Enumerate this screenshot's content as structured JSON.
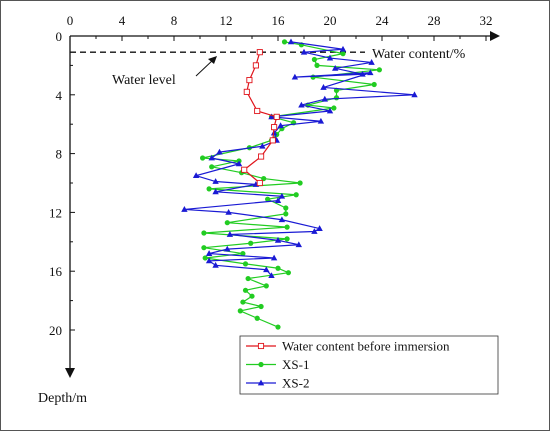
{
  "chart_data": {
    "type": "line",
    "title": "",
    "xlabel": "Water content/%",
    "ylabel": "Depth/m",
    "xlim": [
      0,
      32
    ],
    "ylim": [
      0,
      23
    ],
    "x_ticks": [
      "0",
      "4",
      "8",
      "12",
      "16",
      "20",
      "24",
      "28",
      "32"
    ],
    "y_ticks": [
      "0",
      "4",
      "8",
      "12",
      "16",
      "20"
    ],
    "annotation": "Water level",
    "water_level_depth": 1.1,
    "legend_position": "bottom-right",
    "series": [
      {
        "name": "Water content before immersion",
        "color": "#e0141b",
        "marker": "open-square",
        "points": [
          [
            14.6,
            1.1
          ],
          [
            14.3,
            2.0
          ],
          [
            13.8,
            3.0
          ],
          [
            13.6,
            3.8
          ],
          [
            14.4,
            5.1
          ],
          [
            15.9,
            5.5
          ],
          [
            15.7,
            6.2
          ],
          [
            15.6,
            7.1
          ],
          [
            14.7,
            8.2
          ],
          [
            13.4,
            9.1
          ],
          [
            14.6,
            10.0
          ]
        ]
      },
      {
        "name": "XS-1",
        "color": "#22cc22",
        "marker": "circle",
        "points": [
          [
            16.5,
            0.4
          ],
          [
            17.8,
            0.6
          ],
          [
            21.0,
            1.2
          ],
          [
            18.8,
            1.6
          ],
          [
            19.0,
            2.0
          ],
          [
            23.8,
            2.3
          ],
          [
            18.7,
            2.8
          ],
          [
            23.4,
            3.3
          ],
          [
            20.5,
            3.7
          ],
          [
            20.5,
            4.2
          ],
          [
            18.3,
            4.7
          ],
          [
            20.3,
            4.9
          ],
          [
            15.5,
            5.5
          ],
          [
            17.2,
            5.9
          ],
          [
            16.3,
            6.3
          ],
          [
            15.9,
            6.7
          ],
          [
            15.5,
            7.1
          ],
          [
            13.8,
            7.6
          ],
          [
            10.2,
            8.3
          ],
          [
            13.0,
            8.5
          ],
          [
            10.9,
            8.9
          ],
          [
            13.2,
            9.3
          ],
          [
            14.9,
            9.7
          ],
          [
            17.7,
            10.0
          ],
          [
            10.7,
            10.4
          ],
          [
            17.4,
            10.8
          ],
          [
            15.2,
            11.1
          ],
          [
            16.6,
            11.7
          ],
          [
            16.6,
            12.1
          ],
          [
            12.1,
            12.7
          ],
          [
            16.7,
            13.0
          ],
          [
            10.3,
            13.4
          ],
          [
            16.7,
            13.8
          ],
          [
            13.9,
            14.1
          ],
          [
            10.3,
            14.4
          ],
          [
            13.3,
            14.8
          ],
          [
            10.4,
            15.1
          ],
          [
            13.5,
            15.5
          ],
          [
            16.0,
            15.8
          ],
          [
            16.8,
            16.1
          ],
          [
            13.7,
            16.5
          ],
          [
            15.1,
            17.0
          ],
          [
            13.5,
            17.3
          ],
          [
            14.0,
            17.7
          ],
          [
            13.3,
            18.1
          ],
          [
            14.7,
            18.4
          ],
          [
            13.1,
            18.7
          ],
          [
            14.4,
            19.2
          ],
          [
            16.0,
            19.8
          ]
        ]
      },
      {
        "name": "XS-2",
        "color": "#1a1ad4",
        "marker": "triangle",
        "points": [
          [
            17.0,
            0.4
          ],
          [
            21.0,
            0.9
          ],
          [
            18.0,
            1.1
          ],
          [
            20.0,
            1.5
          ],
          [
            23.2,
            1.8
          ],
          [
            20.4,
            2.2
          ],
          [
            22.5,
            2.6
          ],
          [
            17.3,
            2.8
          ],
          [
            23.1,
            2.5
          ],
          [
            19.5,
            3.5
          ],
          [
            26.5,
            4.0
          ],
          [
            19.6,
            4.3
          ],
          [
            17.8,
            4.7
          ],
          [
            20.0,
            5.1
          ],
          [
            15.5,
            5.5
          ],
          [
            19.3,
            5.8
          ],
          [
            16.2,
            6.1
          ],
          [
            15.7,
            6.6
          ],
          [
            15.9,
            7.1
          ],
          [
            14.8,
            7.5
          ],
          [
            11.5,
            7.9
          ],
          [
            10.9,
            8.3
          ],
          [
            13.0,
            8.7
          ],
          [
            9.7,
            9.5
          ],
          [
            11.2,
            9.9
          ],
          [
            14.3,
            10.1
          ],
          [
            11.2,
            10.6
          ],
          [
            16.3,
            10.9
          ],
          [
            16.0,
            11.2
          ],
          [
            8.8,
            11.8
          ],
          [
            12.2,
            12.0
          ],
          [
            16.3,
            12.5
          ],
          [
            19.2,
            13.1
          ],
          [
            18.8,
            13.3
          ],
          [
            12.3,
            13.5
          ],
          [
            16.0,
            13.9
          ],
          [
            17.6,
            14.2
          ],
          [
            12.1,
            14.5
          ],
          [
            10.7,
            14.8
          ],
          [
            15.7,
            15.1
          ],
          [
            10.7,
            15.3
          ],
          [
            11.2,
            15.6
          ],
          [
            15.1,
            15.9
          ],
          [
            15.5,
            16.3
          ]
        ]
      }
    ]
  }
}
